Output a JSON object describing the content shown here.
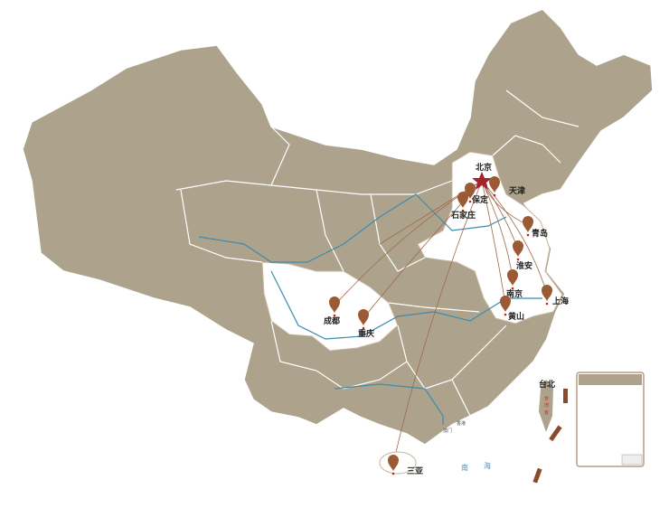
{
  "map": {
    "colors": {
      "land": "#ada38c",
      "highlight": "#ffffff",
      "border": "#ffffff",
      "river": "#3b8bb0",
      "route": "#a0674a",
      "pin": "#9b5a33",
      "capital_star": "#a3242b"
    },
    "capital": {
      "name": "北京",
      "icon": "star-icon"
    },
    "cities": [
      {
        "name": "天津",
        "icon": "map-pin-icon"
      },
      {
        "name": "保定",
        "icon": "map-pin-icon"
      },
      {
        "name": "石家庄",
        "icon": "map-pin-icon"
      },
      {
        "name": "青岛",
        "icon": "map-pin-icon"
      },
      {
        "name": "淮安",
        "icon": "map-pin-icon"
      },
      {
        "name": "南京",
        "icon": "map-pin-icon"
      },
      {
        "name": "上海",
        "icon": "map-pin-icon"
      },
      {
        "name": "黄山",
        "icon": "map-pin-icon"
      },
      {
        "name": "成都",
        "icon": "map-pin-icon"
      },
      {
        "name": "重庆",
        "icon": "map-pin-icon"
      },
      {
        "name": "三亚",
        "icon": "map-pin-icon"
      }
    ],
    "other_labels": {
      "taipei": "台北",
      "taiwan": [
        "台",
        "湾",
        "省"
      ],
      "macau": "澳门",
      "hongkong": "香港",
      "south_sea": [
        "南",
        "海"
      ]
    }
  }
}
